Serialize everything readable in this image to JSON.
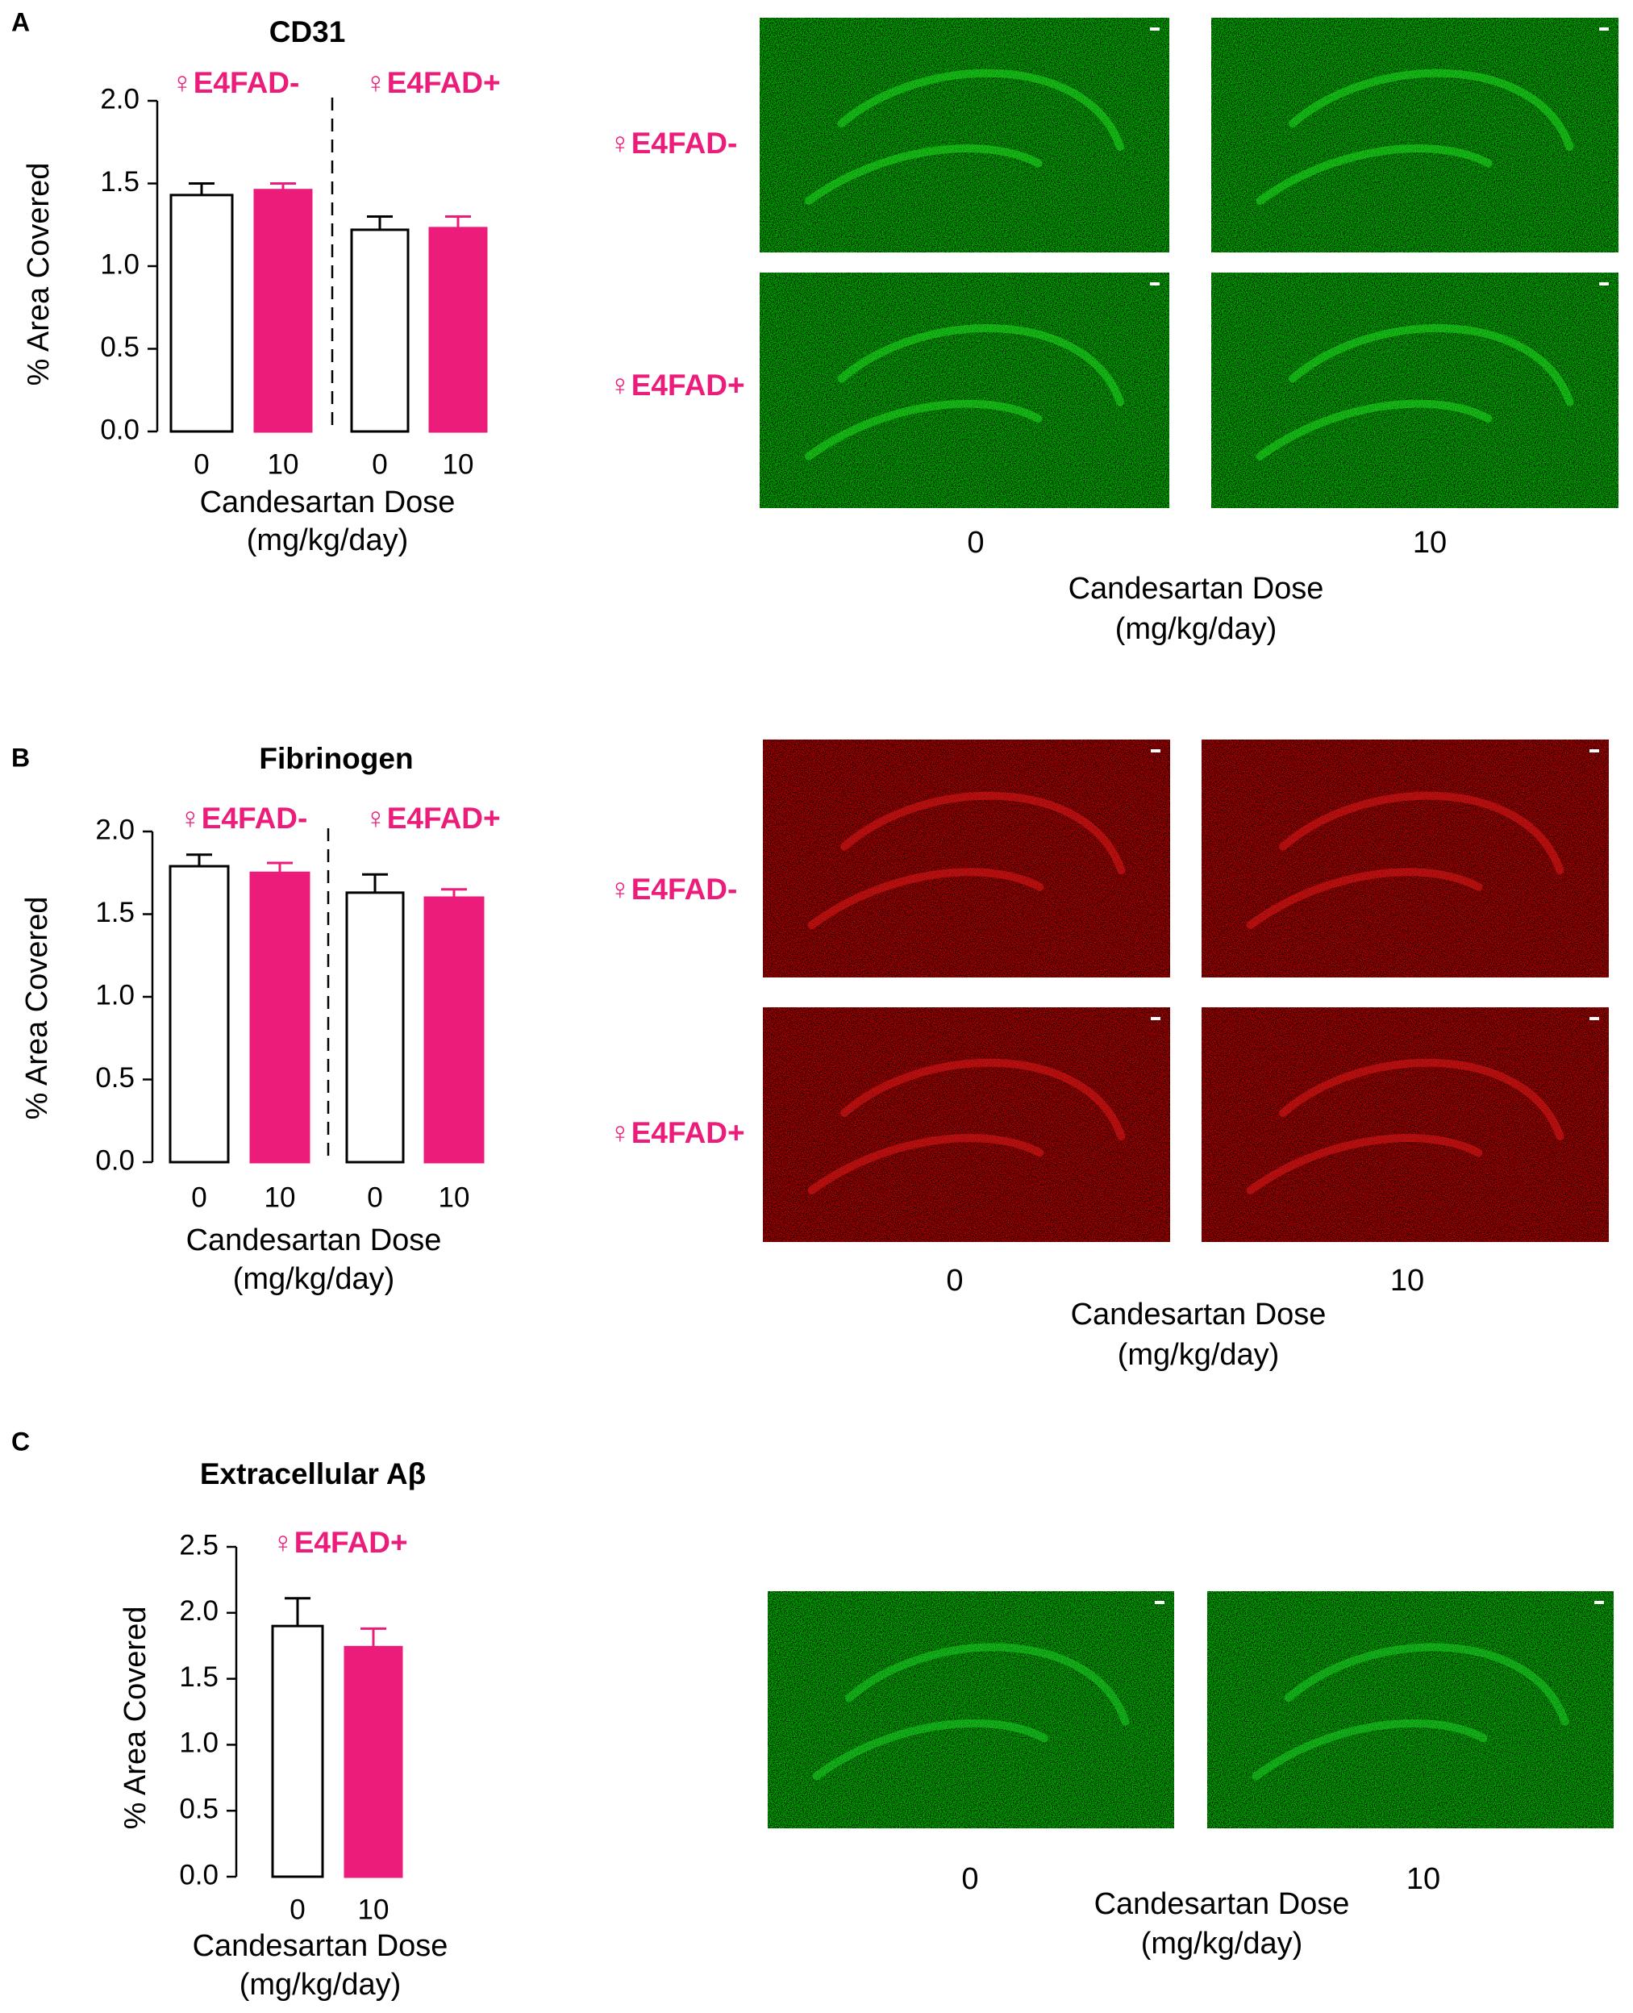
{
  "colors": {
    "accent": "#EC1C7A",
    "bar_open": "#ffffff",
    "bar_outline": "#000000"
  },
  "figure": {
    "dose_title": "Candesartan Dose",
    "dose_unit": "(mg/kg/day)",
    "panels": [
      {
        "letter": "A",
        "title": "CD31",
        "image_groups": [
          "♀E4FAD-",
          "♀E4FAD+"
        ],
        "image_dose_labels": [
          "0",
          "10"
        ],
        "image_channel_color": "#22dd22",
        "scale_bar": "white"
      },
      {
        "letter": "B",
        "title": "Fibrinogen",
        "image_groups": [
          "♀E4FAD-",
          "♀E4FAD+"
        ],
        "image_dose_labels": [
          "0",
          "10"
        ],
        "image_channel_color": "#e21a1a",
        "scale_bar": "white"
      },
      {
        "letter": "C",
        "title": "Extracellular Aβ",
        "image_groups": [],
        "image_dose_labels": [
          "0",
          "10"
        ],
        "image_channel_color": "#1fcf2a",
        "scale_bar": "white"
      }
    ]
  },
  "chart_data": [
    {
      "type": "bar",
      "title": "CD31",
      "ylabel": "% Area Covered",
      "xlabel": "Candesartan Dose (mg/kg/day)",
      "ylim": [
        0,
        2.0
      ],
      "yticks": [
        "0.0",
        "0.5",
        "1.0",
        "1.5",
        "2.0"
      ],
      "groups": [
        "♀E4FAD-",
        "♀E4FAD+"
      ],
      "categories": [
        "0",
        "10",
        "0",
        "10"
      ],
      "values": [
        1.43,
        1.46,
        1.22,
        1.23
      ],
      "errors": [
        0.07,
        0.04,
        0.08,
        0.07
      ],
      "fills": [
        "#ffffff",
        "#EC1C7A",
        "#ffffff",
        "#EC1C7A"
      ]
    },
    {
      "type": "bar",
      "title": "Fibrinogen",
      "ylabel": "% Area Covered",
      "xlabel": "Candesartan Dose (mg/kg/day)",
      "ylim": [
        0,
        2.0
      ],
      "yticks": [
        "0.0",
        "0.5",
        "1.0",
        "1.5",
        "2.0"
      ],
      "groups": [
        "♀E4FAD-",
        "♀E4FAD+"
      ],
      "categories": [
        "0",
        "10",
        "0",
        "10"
      ],
      "values": [
        1.79,
        1.75,
        1.63,
        1.6
      ],
      "errors": [
        0.07,
        0.06,
        0.11,
        0.05
      ],
      "fills": [
        "#ffffff",
        "#EC1C7A",
        "#ffffff",
        "#EC1C7A"
      ]
    },
    {
      "type": "bar",
      "title": "Extracellular Aβ",
      "ylabel": "% Area Covered",
      "xlabel": "Candesartan Dose (mg/kg/day)",
      "ylim": [
        0,
        2.5
      ],
      "yticks": [
        "0.0",
        "0.5",
        "1.0",
        "1.5",
        "2.0",
        "2.5"
      ],
      "groups": [
        "♀E4FAD+"
      ],
      "categories": [
        "0",
        "10"
      ],
      "values": [
        1.9,
        1.74
      ],
      "errors": [
        0.21,
        0.14
      ],
      "fills": [
        "#ffffff",
        "#EC1C7A"
      ]
    }
  ]
}
